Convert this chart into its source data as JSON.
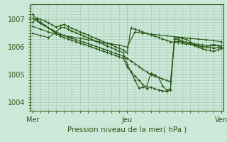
{
  "background_color": "#cce8d8",
  "grid_color": "#aacfba",
  "line_color": "#2d5a1b",
  "ylabel_ticks": [
    1004,
    1005,
    1006,
    1007
  ],
  "xlabel": "Pression niveau de la mer( hPa )",
  "xtick_labels": [
    "Mer",
    "Jeu",
    "Ven"
  ],
  "xtick_positions": [
    0,
    48,
    96
  ],
  "ylim": [
    1003.7,
    1007.55
  ],
  "xlim": [
    -1,
    97
  ],
  "lines": [
    {
      "x": [
        0,
        2,
        4,
        6,
        8,
        10,
        12,
        14,
        16,
        18,
        20,
        22,
        24,
        26,
        28,
        30,
        32,
        34,
        36,
        38,
        40,
        42,
        44,
        46,
        48,
        50,
        52,
        54,
        56,
        58,
        60,
        62,
        64,
        66,
        68,
        70,
        72,
        74,
        76,
        78,
        80,
        82,
        84,
        86,
        88,
        90,
        92,
        94,
        96
      ],
      "y": [
        1007.2,
        1007.0,
        1006.9,
        1006.8,
        1006.7,
        1006.6,
        1006.5,
        1006.4,
        1006.35,
        1006.3,
        1006.25,
        1006.2,
        1006.15,
        1006.1,
        1006.05,
        1006.0,
        1005.95,
        1005.9,
        1005.85,
        1005.8,
        1005.75,
        1005.7,
        1005.65,
        1005.6,
        1005.3,
        1005.1,
        1004.95,
        1004.8,
        1004.65,
        1004.5,
        1004.55,
        1004.5,
        1004.45,
        1004.42,
        1004.4,
        1004.45,
        1006.3,
        1006.35,
        1006.32,
        1006.28,
        1006.2,
        1006.1,
        1006.05,
        1006.0,
        1006.0,
        1006.05,
        1006.1,
        1006.05,
        1006.0
      ]
    },
    {
      "x": [
        0,
        2,
        4,
        6,
        8,
        10,
        12,
        14,
        16,
        18,
        20,
        22,
        24,
        26,
        28,
        30,
        32,
        34,
        36,
        38,
        40,
        42,
        44,
        46,
        48,
        50,
        52,
        54,
        56,
        58,
        60,
        62,
        64,
        66,
        68,
        70,
        72,
        74,
        76,
        78,
        80,
        82,
        84,
        86,
        88,
        90,
        92,
        94,
        96
      ],
      "y": [
        1007.05,
        1006.95,
        1006.85,
        1006.78,
        1006.7,
        1006.62,
        1006.55,
        1006.48,
        1006.42,
        1006.37,
        1006.32,
        1006.27,
        1006.22,
        1006.18,
        1006.13,
        1006.08,
        1006.03,
        1005.98,
        1005.93,
        1005.88,
        1005.83,
        1005.78,
        1005.73,
        1005.68,
        1005.6,
        1005.5,
        1005.4,
        1005.3,
        1005.2,
        1005.1,
        1005.0,
        1004.95,
        1004.9,
        1004.85,
        1004.8,
        1004.75,
        1006.2,
        1006.22,
        1006.2,
        1006.18,
        1006.15,
        1006.12,
        1006.1,
        1006.08,
        1006.05,
        1006.05,
        1006.05,
        1006.05,
        1006.05
      ]
    },
    {
      "x": [
        0,
        4,
        8,
        12,
        16,
        20,
        24,
        28,
        32,
        36,
        40,
        44,
        48,
        52,
        56,
        60,
        64,
        68,
        72,
        76,
        80,
        84,
        88,
        92,
        96
      ],
      "y": [
        1006.75,
        1006.65,
        1006.55,
        1006.48,
        1006.42,
        1006.37,
        1006.32,
        1006.27,
        1006.22,
        1006.17,
        1006.12,
        1006.07,
        1006.0,
        1006.55,
        1006.5,
        1006.47,
        1006.44,
        1006.41,
        1006.38,
        1006.35,
        1006.32,
        1006.29,
        1006.27,
        1006.23,
        1006.2
      ]
    },
    {
      "x": [
        0,
        2,
        4,
        6,
        8,
        10,
        12,
        14,
        16,
        18,
        20,
        22,
        24,
        26,
        28,
        30,
        32,
        34,
        36,
        38,
        40,
        42,
        44,
        46,
        48,
        50,
        52,
        54,
        56,
        58,
        60,
        62,
        64,
        66,
        68,
        70,
        72,
        74,
        76,
        78,
        80,
        82,
        84,
        86,
        88,
        90,
        92,
        94,
        96
      ],
      "y": [
        1006.9,
        1007.05,
        1007.0,
        1006.95,
        1006.88,
        1006.8,
        1006.72,
        1006.78,
        1006.82,
        1006.75,
        1006.68,
        1006.62,
        1006.56,
        1006.5,
        1006.44,
        1006.38,
        1006.32,
        1006.26,
        1006.2,
        1006.14,
        1006.08,
        1006.02,
        1005.96,
        1005.9,
        1005.8,
        1006.7,
        1006.65,
        1006.6,
        1006.55,
        1006.5,
        1006.45,
        1006.4,
        1006.35,
        1006.3,
        1006.25,
        1006.2,
        1006.18,
        1006.16,
        1006.14,
        1006.12,
        1006.1,
        1006.08,
        1006.05,
        1006.02,
        1006.0,
        1005.98,
        1005.97,
        1005.98,
        1005.97
      ]
    },
    {
      "x": [
        0,
        4,
        8,
        12,
        14,
        16,
        18,
        20,
        22,
        24,
        26,
        28,
        30,
        32,
        34,
        36,
        38,
        40,
        42,
        44,
        46,
        48,
        50,
        52,
        54,
        56,
        58,
        60,
        62,
        64,
        66,
        68,
        70,
        72,
        74,
        76,
        78,
        80,
        82,
        84,
        86,
        88,
        90,
        92,
        94,
        96
      ],
      "y": [
        1006.5,
        1006.42,
        1006.35,
        1006.55,
        1006.7,
        1006.72,
        1006.65,
        1006.58,
        1006.52,
        1006.46,
        1006.4,
        1006.34,
        1006.28,
        1006.22,
        1006.16,
        1006.1,
        1006.04,
        1005.98,
        1005.92,
        1005.86,
        1005.8,
        1005.4,
        1005.1,
        1004.8,
        1004.52,
        1004.55,
        1004.6,
        1005.05,
        1005.0,
        1004.9,
        1004.6,
        1004.45,
        1004.5,
        1006.3,
        1006.28,
        1006.22,
        1006.18,
        1006.12,
        1006.06,
        1006.0,
        1005.95,
        1005.9,
        1005.88,
        1005.85,
        1005.9,
        1005.95
      ]
    }
  ]
}
